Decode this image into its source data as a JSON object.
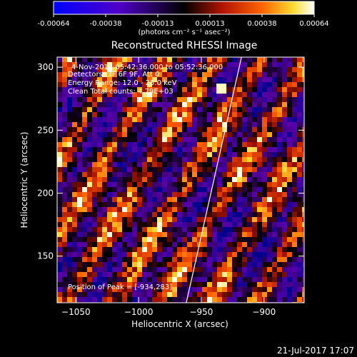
{
  "colorbar": {
    "ticks": [
      "-0.00064",
      "-0.00038",
      "-0.00013",
      "0.00013",
      "0.00038",
      "0.00064"
    ],
    "units_label": "(photons cm⁻² s⁻¹ asec⁻²)",
    "range": [
      -0.00064,
      0.00064
    ]
  },
  "chart_data": {
    "type": "heatmap",
    "title": "Reconstructed RHESSI Image",
    "xlabel": "Heliocentric X (arcsec)",
    "ylabel": "Heliocentric Y (arcsec)",
    "xlim": [
      -1065,
      -868
    ],
    "ylim": [
      113,
      308
    ],
    "x_ticks": [
      -1050,
      -1000,
      -950,
      -900
    ],
    "y_ticks": [
      150,
      200,
      250,
      300
    ],
    "grid": false,
    "limb_line": {
      "x": [
        -962,
        -918
      ],
      "y": [
        113,
        308
      ]
    },
    "annotations": [
      "4-Nov-2014 05:42:36.000 to 05:52:36.000",
      "Detectors: 3F 6F 9F, Att 0",
      "Energy Range: 12.0 - 25.0 keV",
      "Clean    Total counts: 4.79E+03"
    ],
    "peak_label": "Position of Peak = [-934,283]",
    "peak": {
      "x": -934,
      "y": 283
    }
  },
  "footer": {
    "timestamp": "21-Jul-2017 17:07"
  }
}
